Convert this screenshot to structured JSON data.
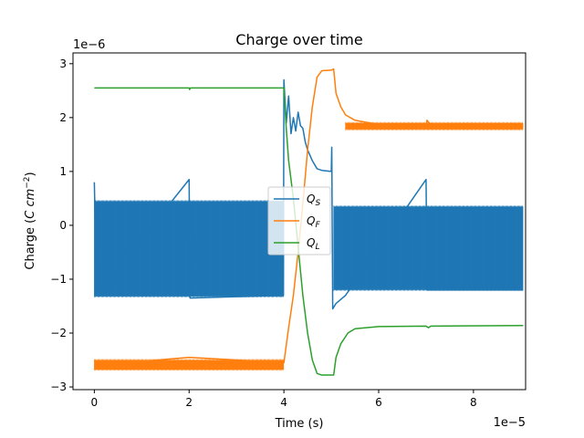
{
  "chart_data": {
    "type": "line",
    "title": "Charge over time",
    "xlabel": "Time (s)",
    "ylabel_prefix": "Charge (",
    "ylabel_unit": "C cm",
    "ylabel_exp": "−2",
    "ylabel_suffix": ")",
    "x_offset_label": "1e−5",
    "y_offset_label": "1e−6",
    "xlim": [
      -0.45,
      9.1
    ],
    "ylim": [
      -3.05,
      3.2
    ],
    "x_ticks": [
      0,
      2,
      4,
      6,
      8
    ],
    "y_ticks": [
      -3,
      -2,
      -1,
      0,
      1,
      2,
      3
    ],
    "x_tick_labels": [
      "0",
      "2",
      "4",
      "6",
      "8"
    ],
    "y_tick_labels": [
      "−3",
      "−2",
      "−1",
      "0",
      "1",
      "2",
      "3"
    ],
    "grid": false,
    "legend_position": "center",
    "series": [
      {
        "name": "Q_S",
        "label_main": "Q",
        "label_sub": "S",
        "color": "#1f77b4",
        "style": "oscillating",
        "bands": [
          {
            "x0": 0,
            "x1": 4.0,
            "low": -1.32,
            "high": 0.45
          },
          {
            "x0": 5.05,
            "x1": 9.05,
            "low": -1.2,
            "high": 0.35
          }
        ],
        "points": [
          [
            0,
            0.8
          ],
          [
            0.05,
            -1.3
          ],
          [
            2.0,
            0.85
          ],
          [
            2.02,
            -1.35
          ],
          [
            3.99,
            -1.3
          ],
          [
            4.0,
            2.7
          ],
          [
            4.05,
            1.9
          ],
          [
            4.1,
            2.4
          ],
          [
            4.15,
            1.7
          ],
          [
            4.2,
            2.0
          ],
          [
            4.25,
            1.75
          ],
          [
            4.3,
            2.1
          ],
          [
            4.35,
            1.85
          ],
          [
            4.4,
            1.8
          ],
          [
            4.45,
            1.55
          ],
          [
            4.5,
            1.4
          ],
          [
            4.6,
            1.2
          ],
          [
            4.7,
            1.05
          ],
          [
            4.8,
            1.02
          ],
          [
            5.0,
            1.0
          ],
          [
            5.01,
            1.45
          ],
          [
            5.03,
            -1.55
          ],
          [
            5.1,
            -1.45
          ],
          [
            5.3,
            -1.3
          ],
          [
            7.0,
            0.85
          ],
          [
            7.02,
            -1.2
          ],
          [
            9.05,
            -1.2
          ]
        ]
      },
      {
        "name": "Q_F",
        "label_main": "Q",
        "label_sub": "F",
        "color": "#ff7f0e",
        "style": "oscillating",
        "bands": [
          {
            "x0": 0,
            "x1": 4.0,
            "low": -2.68,
            "high": -2.5
          },
          {
            "x0": 5.3,
            "x1": 9.05,
            "low": 1.78,
            "high": 1.9
          }
        ],
        "points": [
          [
            0,
            -2.6
          ],
          [
            2.0,
            -2.45
          ],
          [
            4.0,
            -2.55
          ],
          [
            4.1,
            -1.9
          ],
          [
            4.2,
            -1.3
          ],
          [
            4.3,
            -0.5
          ],
          [
            4.4,
            0.4
          ],
          [
            4.5,
            1.4
          ],
          [
            4.6,
            2.2
          ],
          [
            4.7,
            2.75
          ],
          [
            4.8,
            2.87
          ],
          [
            5.0,
            2.88
          ],
          [
            5.05,
            2.9
          ],
          [
            5.1,
            2.45
          ],
          [
            5.2,
            2.2
          ],
          [
            5.3,
            2.05
          ],
          [
            5.5,
            1.95
          ],
          [
            6.0,
            1.87
          ],
          [
            7.0,
            1.82
          ],
          [
            7.02,
            1.95
          ],
          [
            7.1,
            1.86
          ],
          [
            9.05,
            1.83
          ]
        ]
      },
      {
        "name": "Q_L",
        "label_main": "Q",
        "label_sub": "L",
        "color": "#2ca02c",
        "style": "line",
        "bands": [],
        "points": [
          [
            0,
            2.55
          ],
          [
            2.0,
            2.55
          ],
          [
            2.01,
            2.52
          ],
          [
            2.03,
            2.55
          ],
          [
            4.0,
            2.55
          ],
          [
            4.05,
            1.8
          ],
          [
            4.1,
            1.2
          ],
          [
            4.2,
            0.5
          ],
          [
            4.3,
            -0.4
          ],
          [
            4.4,
            -1.3
          ],
          [
            4.5,
            -2.0
          ],
          [
            4.6,
            -2.5
          ],
          [
            4.7,
            -2.75
          ],
          [
            4.8,
            -2.78
          ],
          [
            5.05,
            -2.78
          ],
          [
            5.1,
            -2.45
          ],
          [
            5.2,
            -2.2
          ],
          [
            5.35,
            -2.0
          ],
          [
            5.5,
            -1.92
          ],
          [
            6.0,
            -1.88
          ],
          [
            7.0,
            -1.87
          ],
          [
            7.05,
            -1.9
          ],
          [
            7.1,
            -1.87
          ],
          [
            9.05,
            -1.86
          ]
        ]
      }
    ]
  }
}
